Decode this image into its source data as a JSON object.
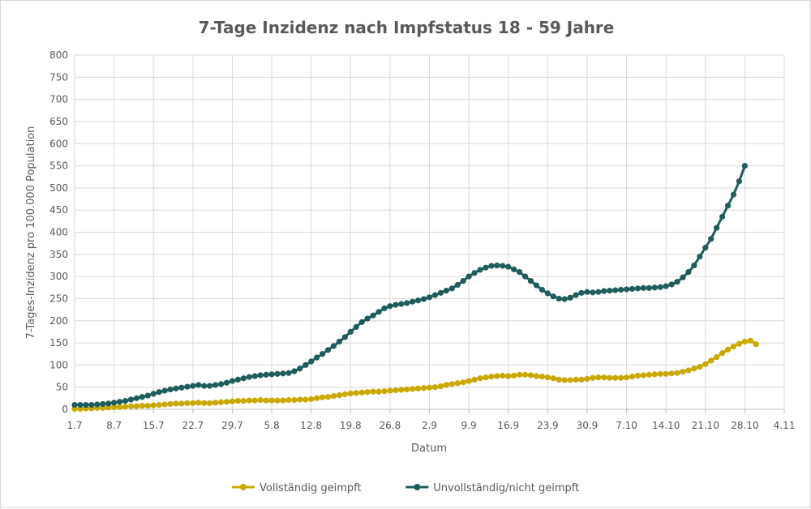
{
  "chart_data": {
    "type": "line",
    "title": "7-Tage Inzidenz nach Impfstatus 18 - 59 Jahre",
    "xlabel": "Datum",
    "ylabel": "7-Tages-Inzidenz  pro 100.000 Population",
    "ylim": [
      0,
      800
    ],
    "ytick_step": 50,
    "x_ticks": [
      "1.7",
      "8.7",
      "15.7",
      "22.7",
      "29.7",
      "5.8",
      "12.8",
      "19.8",
      "26.8",
      "2.9",
      "9.9",
      "16.9",
      "23.9",
      "30.9",
      "7.10",
      "14.10",
      "21.10",
      "28.10",
      "4.11"
    ],
    "x_start_label": "1.7",
    "x_tick_step_days": 7,
    "grid": true,
    "legend_position": "bottom",
    "series": [
      {
        "name": "Vollständig geimpft",
        "color": "#c9a800",
        "values": [
          1,
          1,
          2,
          2,
          3,
          3,
          4,
          5,
          5,
          6,
          7,
          7,
          8,
          8,
          9,
          10,
          11,
          12,
          13,
          13,
          14,
          14,
          15,
          14,
          14,
          15,
          16,
          17,
          18,
          19,
          19,
          20,
          20,
          21,
          20,
          20,
          20,
          20,
          21,
          21,
          22,
          22,
          23,
          25,
          27,
          28,
          30,
          32,
          34,
          36,
          37,
          38,
          39,
          40,
          40,
          41,
          42,
          43,
          44,
          45,
          46,
          47,
          48,
          49,
          50,
          52,
          55,
          57,
          59,
          61,
          64,
          67,
          70,
          72,
          74,
          75,
          76,
          75,
          76,
          78,
          78,
          77,
          75,
          74,
          72,
          70,
          67,
          66,
          66,
          67,
          67,
          69,
          71,
          72,
          72,
          71,
          71,
          71,
          72,
          74,
          76,
          77,
          78,
          79,
          80,
          80,
          81,
          82,
          85,
          88,
          92,
          96,
          102,
          110,
          118,
          127,
          135,
          142,
          148,
          153,
          155,
          147
        ]
      },
      {
        "name": "Unvollständig/nicht geimpft",
        "color": "#1f5c5c",
        "values": [
          10,
          10,
          10,
          10,
          11,
          12,
          13,
          15,
          17,
          19,
          22,
          25,
          28,
          31,
          35,
          39,
          42,
          45,
          47,
          49,
          51,
          53,
          55,
          53,
          53,
          55,
          57,
          60,
          64,
          67,
          70,
          73,
          75,
          77,
          78,
          79,
          80,
          81,
          82,
          86,
          92,
          100,
          108,
          117,
          125,
          134,
          143,
          153,
          163,
          175,
          186,
          197,
          205,
          212,
          220,
          228,
          233,
          236,
          238,
          240,
          243,
          246,
          249,
          253,
          258,
          263,
          268,
          273,
          281,
          290,
          300,
          308,
          315,
          320,
          324,
          325,
          324,
          322,
          316,
          310,
          300,
          290,
          280,
          270,
          262,
          255,
          250,
          249,
          252,
          258,
          263,
          265,
          264,
          265,
          267,
          268,
          269,
          270,
          271,
          272,
          273,
          274,
          274,
          275,
          276,
          278,
          282,
          288,
          298,
          310,
          325,
          345,
          365,
          385,
          410,
          435,
          460,
          485,
          515,
          550
        ]
      }
    ]
  }
}
